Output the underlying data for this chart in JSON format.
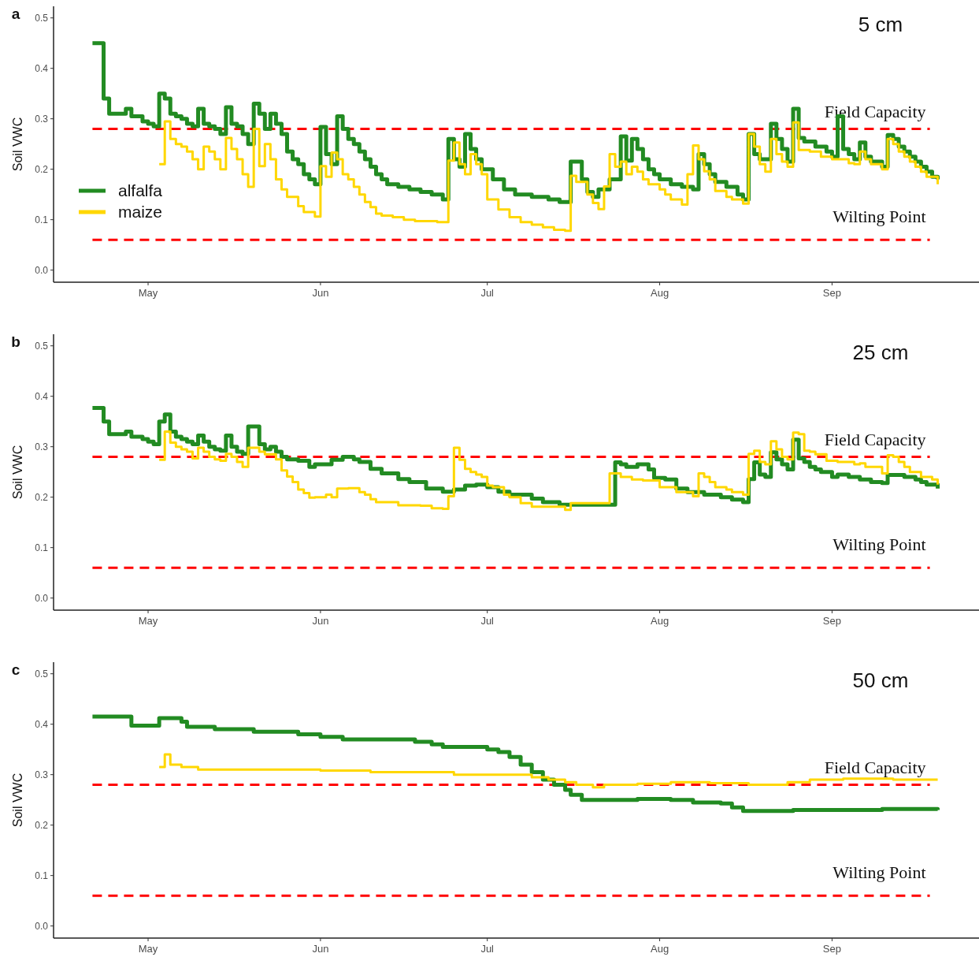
{
  "chart_data": [
    {
      "type": "step",
      "title": "5 cm",
      "annotations": [
        "a"
      ],
      "ylabel": "Soil VWC",
      "xlim": [
        "--04-14",
        "--09-27"
      ],
      "xticks": [
        {
          "value": "--05-01",
          "label": "May"
        },
        {
          "value": "--06-01",
          "label": "Jun"
        },
        {
          "value": "--07-01",
          "label": "Jul"
        },
        {
          "value": "--08-01",
          "label": "Aug"
        },
        {
          "value": "--09-01",
          "label": "Sep"
        }
      ],
      "ylim": [
        -0.024,
        0.523
      ],
      "yticks": [
        {
          "value": 0,
          "label": "0.0"
        },
        {
          "value": 0.1,
          "label": "0.1"
        },
        {
          "value": 0.2,
          "label": "0.2"
        },
        {
          "value": 0.3,
          "label": "0.3"
        },
        {
          "value": 0.4,
          "label": "0.4"
        },
        {
          "value": 0.5,
          "label": "0.5"
        }
      ],
      "legend": "left",
      "ref_lines": [
        {
          "axis": "y",
          "value": 0.28,
          "label": "Field Capacity",
          "color": "#ff0000",
          "line_style": "dashed"
        },
        {
          "axis": "y",
          "value": 0.06,
          "label": "Wilting Point",
          "color": "#ff0000",
          "line_style": "dashed"
        }
      ],
      "series": [
        {
          "name": "alfalfa",
          "color": "#228b22",
          "x": [
            "--04-21",
            "--04-23",
            "--04-24",
            "--04-26",
            "--04-27",
            "--04-28",
            "--04-30",
            "--05-01",
            "--05-02",
            "--05-03",
            "--05-04",
            "--05-05",
            "--05-06",
            "--05-07",
            "--05-08",
            "--05-09",
            "--05-10",
            "--05-11",
            "--05-12",
            "--05-13",
            "--05-14",
            "--05-15",
            "--05-16",
            "--05-17",
            "--05-18",
            "--05-19",
            "--05-20",
            "--05-21",
            "--05-22",
            "--05-23",
            "--05-24",
            "--05-25",
            "--05-26",
            "--05-27",
            "--05-28",
            "--05-29",
            "--05-30",
            "--05-31",
            "--06-01",
            "--06-02",
            "--06-03",
            "--06-04",
            "--06-05",
            "--06-06",
            "--06-07",
            "--06-08",
            "--06-09",
            "--06-10",
            "--06-11",
            "--06-12",
            "--06-13",
            "--06-15",
            "--06-17",
            "--06-19",
            "--06-21",
            "--06-23",
            "--06-24",
            "--06-25",
            "--06-26",
            "--06-27",
            "--06-28",
            "--06-29",
            "--06-30",
            "--07-02",
            "--07-04",
            "--07-06",
            "--07-09",
            "--07-12",
            "--07-14",
            "--07-16",
            "--07-18",
            "--07-19",
            "--07-20",
            "--07-21",
            "--07-23",
            "--07-25",
            "--07-26",
            "--07-27",
            "--07-28",
            "--07-29",
            "--07-30",
            "--07-31",
            "--08-01",
            "--08-03",
            "--08-05",
            "--08-07",
            "--08-08",
            "--08-09",
            "--08-10",
            "--08-11",
            "--08-13",
            "--08-15",
            "--08-16",
            "--08-17",
            "--08-18",
            "--08-19",
            "--08-21",
            "--08-22",
            "--08-23",
            "--08-24",
            "--08-25",
            "--08-26",
            "--08-27",
            "--08-29",
            "--08-31",
            "--09-01",
            "--09-02",
            "--09-03",
            "--09-04",
            "--09-05",
            "--09-06",
            "--09-07",
            "--09-08",
            "--09-10",
            "--09-11",
            "--09-12",
            "--09-13",
            "--09-14",
            "--09-15",
            "--09-16",
            "--09-17",
            "--09-18",
            "--09-19",
            "--09-20"
          ],
          "values": [
            0.45,
            0.34,
            0.31,
            0.31,
            0.32,
            0.305,
            0.295,
            0.29,
            0.285,
            0.35,
            0.34,
            0.31,
            0.305,
            0.3,
            0.29,
            0.285,
            0.32,
            0.29,
            0.285,
            0.28,
            0.27,
            0.323,
            0.29,
            0.285,
            0.27,
            0.25,
            0.33,
            0.31,
            0.28,
            0.31,
            0.29,
            0.27,
            0.235,
            0.22,
            0.21,
            0.19,
            0.18,
            0.17,
            0.284,
            0.23,
            0.21,
            0.305,
            0.28,
            0.26,
            0.25,
            0.235,
            0.22,
            0.205,
            0.19,
            0.18,
            0.17,
            0.165,
            0.16,
            0.155,
            0.15,
            0.14,
            0.26,
            0.22,
            0.205,
            0.27,
            0.24,
            0.22,
            0.2,
            0.18,
            0.16,
            0.15,
            0.145,
            0.14,
            0.135,
            0.215,
            0.18,
            0.155,
            0.145,
            0.16,
            0.18,
            0.265,
            0.217,
            0.26,
            0.24,
            0.22,
            0.2,
            0.19,
            0.18,
            0.17,
            0.165,
            0.16,
            0.23,
            0.21,
            0.19,
            0.175,
            0.165,
            0.15,
            0.14,
            0.27,
            0.23,
            0.22,
            0.29,
            0.26,
            0.24,
            0.215,
            0.32,
            0.262,
            0.255,
            0.245,
            0.235,
            0.225,
            0.305,
            0.24,
            0.23,
            0.22,
            0.253,
            0.225,
            0.215,
            0.205,
            0.268,
            0.26,
            0.245,
            0.235,
            0.225,
            0.215,
            0.205,
            0.195,
            0.185,
            0.18
          ]
        },
        {
          "name": "maize",
          "color": "#ffd700",
          "x": [
            "--05-03",
            "--05-04",
            "--05-05",
            "--05-06",
            "--05-07",
            "--05-08",
            "--05-09",
            "--05-10",
            "--05-11",
            "--05-12",
            "--05-13",
            "--05-14",
            "--05-15",
            "--05-16",
            "--05-17",
            "--05-18",
            "--05-19",
            "--05-20",
            "--05-21",
            "--05-22",
            "--05-23",
            "--05-24",
            "--05-25",
            "--05-26",
            "--05-28",
            "--05-29",
            "--05-31",
            "--06-01",
            "--06-02",
            "--06-03",
            "--06-04",
            "--06-05",
            "--06-06",
            "--06-07",
            "--06-08",
            "--06-09",
            "--06-10",
            "--06-11",
            "--06-12",
            "--06-14",
            "--06-16",
            "--06-18",
            "--06-22",
            "--06-24",
            "--06-25",
            "--06-26",
            "--06-27",
            "--06-28",
            "--06-29",
            "--06-30",
            "--07-01",
            "--07-03",
            "--07-05",
            "--07-07",
            "--07-09",
            "--07-11",
            "--07-13",
            "--07-15",
            "--07-16",
            "--07-17",
            "--07-19",
            "--07-20",
            "--07-21",
            "--07-22",
            "--07-23",
            "--07-24",
            "--07-25",
            "--07-26",
            "--07-27",
            "--07-28",
            "--07-29",
            "--07-30",
            "--08-01",
            "--08-02",
            "--08-03",
            "--08-05",
            "--08-06",
            "--08-07",
            "--08-08",
            "--08-09",
            "--08-10",
            "--08-11",
            "--08-13",
            "--08-14",
            "--08-16",
            "--08-17",
            "--08-18",
            "--08-19",
            "--08-20",
            "--08-21",
            "--08-22",
            "--08-23",
            "--08-24",
            "--08-25",
            "--08-26",
            "--08-28",
            "--08-30",
            "--09-01",
            "--09-04",
            "--09-05",
            "--09-06",
            "--09-07",
            "--09-08",
            "--09-10",
            "--09-11",
            "--09-12",
            "--09-13",
            "--09-14",
            "--09-15",
            "--09-16",
            "--09-17",
            "--09-18",
            "--09-20"
          ],
          "values": [
            0.21,
            0.295,
            0.26,
            0.25,
            0.245,
            0.235,
            0.22,
            0.2,
            0.245,
            0.235,
            0.22,
            0.2,
            0.262,
            0.24,
            0.22,
            0.19,
            0.165,
            0.28,
            0.206,
            0.25,
            0.22,
            0.18,
            0.16,
            0.145,
            0.127,
            0.115,
            0.106,
            0.206,
            0.185,
            0.233,
            0.22,
            0.19,
            0.18,
            0.165,
            0.15,
            0.135,
            0.125,
            0.112,
            0.108,
            0.105,
            0.1,
            0.097,
            0.095,
            0.217,
            0.253,
            0.21,
            0.19,
            0.23,
            0.21,
            0.19,
            0.14,
            0.12,
            0.105,
            0.095,
            0.09,
            0.085,
            0.08,
            0.078,
            0.187,
            0.175,
            0.15,
            0.133,
            0.121,
            0.166,
            0.23,
            0.205,
            0.215,
            0.19,
            0.205,
            0.195,
            0.18,
            0.17,
            0.16,
            0.15,
            0.14,
            0.13,
            0.19,
            0.247,
            0.22,
            0.196,
            0.18,
            0.157,
            0.145,
            0.14,
            0.132,
            0.27,
            0.245,
            0.21,
            0.195,
            0.26,
            0.23,
            0.215,
            0.205,
            0.293,
            0.238,
            0.235,
            0.225,
            0.22,
            0.212,
            0.21,
            0.235,
            0.22,
            0.21,
            0.2,
            0.26,
            0.25,
            0.235,
            0.225,
            0.215,
            0.205,
            0.195,
            0.185,
            0.17
          ]
        }
      ]
    },
    {
      "type": "step",
      "title": "25 cm",
      "annotations": [
        "b"
      ],
      "ylabel": "Soil VWC",
      "xlim": [
        "--04-14",
        "--09-27"
      ],
      "xticks": [
        {
          "value": "--05-01",
          "label": "May"
        },
        {
          "value": "--06-01",
          "label": "Jun"
        },
        {
          "value": "--07-01",
          "label": "Jul"
        },
        {
          "value": "--08-01",
          "label": "Aug"
        },
        {
          "value": "--09-01",
          "label": "Sep"
        }
      ],
      "ylim": [
        -0.024,
        0.523
      ],
      "yticks": [
        {
          "value": 0,
          "label": "0.0"
        },
        {
          "value": 0.1,
          "label": "0.1"
        },
        {
          "value": 0.2,
          "label": "0.2"
        },
        {
          "value": 0.3,
          "label": "0.3"
        },
        {
          "value": 0.4,
          "label": "0.4"
        },
        {
          "value": 0.5,
          "label": "0.5"
        }
      ],
      "ref_lines": [
        {
          "axis": "y",
          "value": 0.28,
          "label": "Field Capacity",
          "color": "#ff0000",
          "line_style": "dashed"
        },
        {
          "axis": "y",
          "value": 0.06,
          "label": "Wilting Point",
          "color": "#ff0000",
          "line_style": "dashed"
        }
      ],
      "series": [
        {
          "color": "#228b22",
          "x": [
            "--04-21",
            "--04-23",
            "--04-24",
            "--04-26",
            "--04-27",
            "--04-28",
            "--04-30",
            "--05-01",
            "--05-02",
            "--05-03",
            "--05-04",
            "--05-05",
            "--05-06",
            "--05-07",
            "--05-08",
            "--05-09",
            "--05-10",
            "--05-11",
            "--05-12",
            "--05-13",
            "--05-14",
            "--05-15",
            "--05-16",
            "--05-17",
            "--05-18",
            "--05-19",
            "--05-21",
            "--05-22",
            "--05-23",
            "--05-24",
            "--05-25",
            "--05-26",
            "--05-28",
            "--05-30",
            "--05-31",
            "--06-03",
            "--06-05",
            "--06-07",
            "--06-08",
            "--06-10",
            "--06-12",
            "--06-15",
            "--06-17",
            "--06-20",
            "--06-23",
            "--06-25",
            "--06-27",
            "--06-29",
            "--07-01",
            "--07-03",
            "--07-05",
            "--07-09",
            "--07-11",
            "--07-14",
            "--07-24",
            "--07-25",
            "--07-26",
            "--07-28",
            "--07-30",
            "--07-31",
            "--08-02",
            "--08-04",
            "--08-06",
            "--08-09",
            "--08-12",
            "--08-14",
            "--08-16",
            "--08-17",
            "--08-18",
            "--08-19",
            "--08-20",
            "--08-21",
            "--08-22",
            "--08-23",
            "--08-24",
            "--08-25",
            "--08-26",
            "--08-27",
            "--08-28",
            "--08-29",
            "--08-30",
            "--09-01",
            "--09-02",
            "--09-04",
            "--09-06",
            "--09-08",
            "--09-10",
            "--09-11",
            "--09-14",
            "--09-16",
            "--09-17",
            "--09-18",
            "--09-20"
          ],
          "values": [
            0.377,
            0.35,
            0.325,
            0.325,
            0.33,
            0.32,
            0.315,
            0.31,
            0.305,
            0.35,
            0.364,
            0.33,
            0.32,
            0.315,
            0.31,
            0.305,
            0.322,
            0.31,
            0.3,
            0.295,
            0.292,
            0.322,
            0.3,
            0.29,
            0.286,
            0.34,
            0.305,
            0.295,
            0.3,
            0.29,
            0.28,
            0.275,
            0.272,
            0.26,
            0.265,
            0.274,
            0.28,
            0.275,
            0.27,
            0.256,
            0.247,
            0.236,
            0.23,
            0.217,
            0.211,
            0.215,
            0.223,
            0.225,
            0.22,
            0.211,
            0.205,
            0.197,
            0.19,
            0.185,
            0.269,
            0.265,
            0.26,
            0.265,
            0.255,
            0.238,
            0.235,
            0.217,
            0.21,
            0.205,
            0.2,
            0.195,
            0.19,
            0.236,
            0.269,
            0.245,
            0.24,
            0.289,
            0.275,
            0.265,
            0.255,
            0.314,
            0.277,
            0.27,
            0.26,
            0.255,
            0.25,
            0.24,
            0.245,
            0.24,
            0.235,
            0.23,
            0.228,
            0.244,
            0.24,
            0.235,
            0.23,
            0.225,
            0.217
          ]
        },
        {
          "color": "#ffd700",
          "x": [
            "--05-03",
            "--05-04",
            "--05-05",
            "--05-06",
            "--05-07",
            "--05-08",
            "--05-09",
            "--05-10",
            "--05-11",
            "--05-12",
            "--05-13",
            "--05-14",
            "--05-15",
            "--05-16",
            "--05-17",
            "--05-18",
            "--05-19",
            "--05-21",
            "--05-22",
            "--05-24",
            "--05-25",
            "--05-26",
            "--05-27",
            "--05-28",
            "--05-29",
            "--05-30",
            "--05-31",
            "--06-02",
            "--06-03",
            "--06-04",
            "--06-06",
            "--06-08",
            "--06-09",
            "--06-10",
            "--06-11",
            "--06-15",
            "--06-19",
            "--06-21",
            "--06-23",
            "--06-24",
            "--06-25",
            "--06-26",
            "--06-27",
            "--06-28",
            "--06-29",
            "--06-30",
            "--07-01",
            "--07-02",
            "--07-04",
            "--07-05",
            "--07-07",
            "--07-09",
            "--07-15",
            "--07-16",
            "--07-23",
            "--07-25",
            "--07-27",
            "--07-29",
            "--08-01",
            "--08-04",
            "--08-07",
            "--08-08",
            "--08-09",
            "--08-10",
            "--08-11",
            "--08-13",
            "--08-14",
            "--08-16",
            "--08-17",
            "--08-18",
            "--08-19",
            "--08-20",
            "--08-21",
            "--08-22",
            "--08-23",
            "--08-24",
            "--08-25",
            "--08-26",
            "--08-27",
            "--08-28",
            "--08-29",
            "--08-31",
            "--09-02",
            "--09-05",
            "--09-06",
            "--09-07",
            "--09-10",
            "--09-11",
            "--09-12",
            "--09-13",
            "--09-14",
            "--09-15",
            "--09-17",
            "--09-19",
            "--09-20"
          ],
          "values": [
            0.274,
            0.33,
            0.308,
            0.3,
            0.295,
            0.29,
            0.277,
            0.298,
            0.29,
            0.28,
            0.275,
            0.272,
            0.286,
            0.28,
            0.27,
            0.26,
            0.298,
            0.29,
            0.285,
            0.275,
            0.253,
            0.241,
            0.23,
            0.215,
            0.208,
            0.199,
            0.2,
            0.205,
            0.2,
            0.217,
            0.218,
            0.21,
            0.205,
            0.196,
            0.19,
            0.184,
            0.183,
            0.178,
            0.177,
            0.202,
            0.298,
            0.274,
            0.256,
            0.25,
            0.245,
            0.24,
            0.223,
            0.22,
            0.205,
            0.2,
            0.188,
            0.181,
            0.175,
            0.188,
            0.247,
            0.24,
            0.235,
            0.233,
            0.22,
            0.21,
            0.202,
            0.247,
            0.24,
            0.23,
            0.22,
            0.215,
            0.21,
            0.205,
            0.286,
            0.292,
            0.27,
            0.265,
            0.311,
            0.295,
            0.28,
            0.275,
            0.328,
            0.325,
            0.292,
            0.29,
            0.285,
            0.272,
            0.27,
            0.265,
            0.267,
            0.26,
            0.247,
            0.283,
            0.28,
            0.27,
            0.26,
            0.25,
            0.24,
            0.235,
            0.225
          ]
        }
      ]
    },
    {
      "type": "step",
      "title": "50 cm",
      "annotations": [
        "c"
      ],
      "ylabel": "Soil VWC",
      "xlim": [
        "--04-14",
        "--09-27"
      ],
      "xticks": [
        {
          "value": "--05-01",
          "label": "May"
        },
        {
          "value": "--06-01",
          "label": "Jun"
        },
        {
          "value": "--07-01",
          "label": "Jul"
        },
        {
          "value": "--08-01",
          "label": "Aug"
        },
        {
          "value": "--09-01",
          "label": "Sep"
        }
      ],
      "ylim": [
        -0.024,
        0.523
      ],
      "yticks": [
        {
          "value": 0,
          "label": "0.0"
        },
        {
          "value": 0.1,
          "label": "0.1"
        },
        {
          "value": 0.2,
          "label": "0.2"
        },
        {
          "value": 0.3,
          "label": "0.3"
        },
        {
          "value": 0.4,
          "label": "0.4"
        },
        {
          "value": 0.5,
          "label": "0.5"
        }
      ],
      "ref_lines": [
        {
          "axis": "y",
          "value": 0.28,
          "label": "Field Capacity",
          "color": "#ff0000",
          "line_style": "dashed"
        },
        {
          "axis": "y",
          "value": 0.06,
          "label": "Wilting Point",
          "color": "#ff0000",
          "line_style": "dashed"
        }
      ],
      "series": [
        {
          "color": "#228b22",
          "x": [
            "--04-21",
            "--04-28",
            "--05-03",
            "--05-07",
            "--05-08",
            "--05-13",
            "--05-20",
            "--05-28",
            "--06-01",
            "--06-05",
            "--06-12",
            "--06-18",
            "--06-21",
            "--06-23",
            "--07-01",
            "--07-03",
            "--07-05",
            "--07-07",
            "--07-09",
            "--07-11",
            "--07-13",
            "--07-15",
            "--07-16",
            "--07-18",
            "--07-28",
            "--08-03",
            "--08-07",
            "--08-12",
            "--08-14",
            "--08-16",
            "--08-25",
            "--09-10",
            "--09-20"
          ],
          "values": [
            0.415,
            0.397,
            0.412,
            0.405,
            0.395,
            0.39,
            0.385,
            0.38,
            0.375,
            0.37,
            0.37,
            0.365,
            0.36,
            0.355,
            0.35,
            0.345,
            0.335,
            0.32,
            0.305,
            0.29,
            0.28,
            0.27,
            0.26,
            0.25,
            0.252,
            0.25,
            0.245,
            0.243,
            0.235,
            0.228,
            0.23,
            0.232,
            0.23
          ]
        },
        {
          "color": "#ffd700",
          "x": [
            "--05-03",
            "--05-04",
            "--05-05",
            "--05-07",
            "--05-10",
            "--06-01",
            "--06-10",
            "--06-25",
            "--07-05",
            "--07-09",
            "--07-12",
            "--07-15",
            "--07-17",
            "--07-20",
            "--07-22",
            "--07-28",
            "--08-03",
            "--08-10",
            "--08-17",
            "--08-24",
            "--08-28",
            "--09-03",
            "--09-12",
            "--09-20"
          ],
          "values": [
            0.315,
            0.34,
            0.32,
            0.315,
            0.31,
            0.308,
            0.305,
            0.3,
            0.3,
            0.295,
            0.29,
            0.285,
            0.28,
            0.275,
            0.28,
            0.282,
            0.285,
            0.283,
            0.28,
            0.285,
            0.29,
            0.292,
            0.29,
            0.29
          ]
        }
      ]
    }
  ]
}
